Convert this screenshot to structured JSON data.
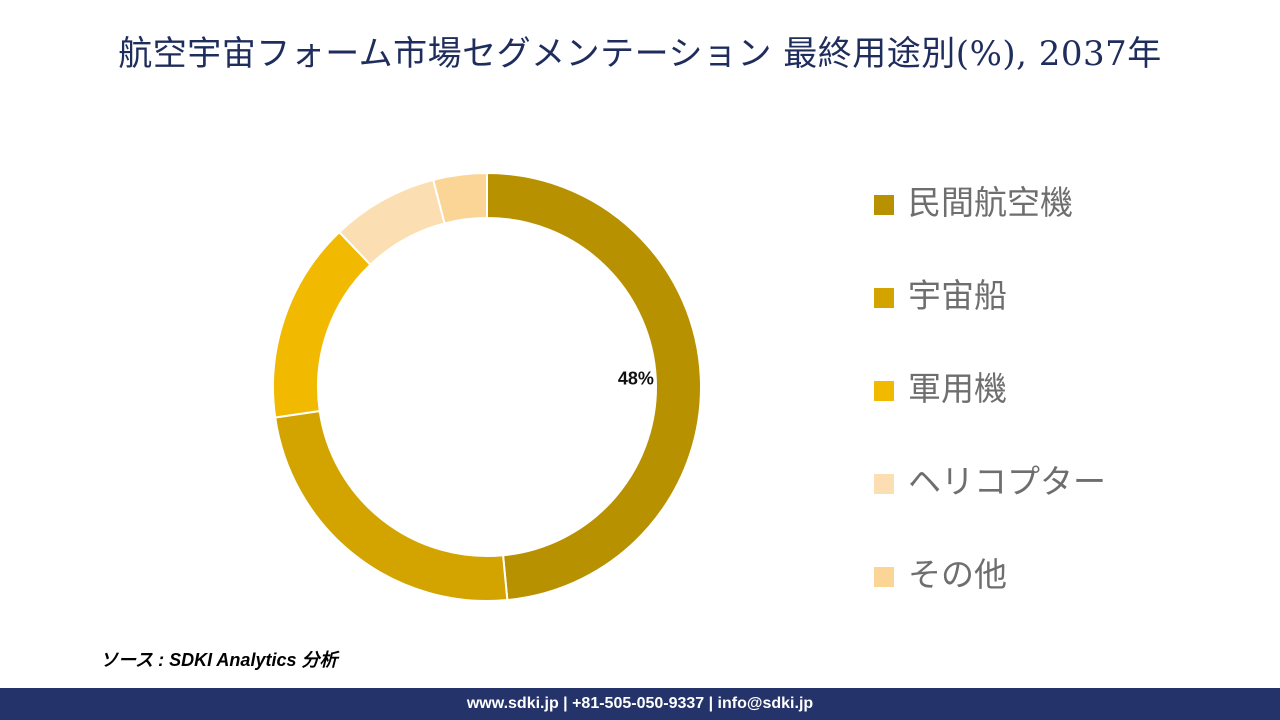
{
  "title": "航空宇宙フォーム市場セグメンテーション 最終用途別(%), 2037年",
  "chart_data": {
    "type": "pie",
    "style": "donut",
    "categories": [
      "民間航空機",
      "宇宙船",
      "軍用機",
      "ヘリコプター",
      "その他"
    ],
    "values": [
      48,
      24,
      15,
      8,
      4
    ],
    "colors": [
      "#b89100",
      "#d3a400",
      "#f1b900",
      "#fbdfb3",
      "#fbd596"
    ],
    "data_labels": [
      "48%",
      null,
      null,
      null,
      null
    ],
    "legend_position": "right"
  },
  "source": "ソース : SDKI Analytics 分析",
  "footer": "www.sdki.jp | +81-505-050-9337 | info@sdki.jp"
}
